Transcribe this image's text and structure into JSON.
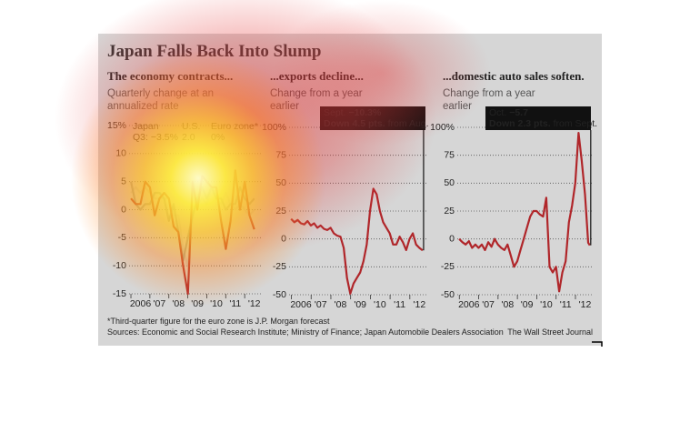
{
  "title": "Japan Falls Back Into Slump",
  "footnote": "*Third-quarter figure for the euro zone is J.P. Morgan forecast",
  "sources": "Sources: Economic and Social Research Institute; Ministry of Finance; Japan Automobile Dealers Association",
  "credit": "The Wall Street Journal",
  "chart_data": [
    {
      "type": "line",
      "title": "The economy contracts...",
      "subtitle": "Quarterly change at an annualized rate",
      "x": [
        2006.0,
        2006.25,
        2006.5,
        2006.75,
        2007.0,
        2007.25,
        2007.5,
        2007.75,
        2008.0,
        2008.25,
        2008.5,
        2008.75,
        2009.0,
        2009.25,
        2009.5,
        2009.75,
        2010.0,
        2010.25,
        2010.5,
        2010.75,
        2011.0,
        2011.25,
        2011.5,
        2011.75,
        2012.0,
        2012.25,
        2012.5
      ],
      "series": [
        {
          "name": "Euro zone*",
          "label": "0%",
          "color": "#c4c4c4",
          "values": [
            3,
            4,
            3,
            4,
            3,
            2,
            2,
            2,
            2,
            -1,
            -1,
            -7,
            -10,
            -1,
            1,
            2,
            1,
            4,
            2,
            1,
            3,
            1,
            0,
            1,
            0,
            -1,
            0
          ]
        },
        {
          "name": "U.S.",
          "label": "2.0",
          "color": "#9a9a9a",
          "values": [
            5,
            1,
            0,
            1,
            1,
            3,
            3,
            2,
            -2,
            1,
            -4,
            -9,
            -5,
            -1,
            2,
            4,
            2,
            4,
            2,
            2,
            0,
            1,
            1,
            4,
            2,
            1,
            2.0
          ]
        },
        {
          "name": "Japan",
          "label": "Q3: −3.5%",
          "color": "#b0262a",
          "values": [
            2,
            1,
            1,
            5,
            4,
            -1,
            2,
            3,
            2,
            -3,
            -4,
            -10,
            -15,
            5,
            0,
            6,
            5,
            4,
            4,
            -2,
            -7,
            -2,
            7,
            0,
            5,
            -1,
            -3.5
          ]
        }
      ],
      "xlim": [
        2005.9,
        2012.9
      ],
      "xticks": [
        {
          "value": 2006.5,
          "label": "2006"
        },
        {
          "value": 2007.5,
          "label": "'07"
        },
        {
          "value": 2008.5,
          "label": "'08"
        },
        {
          "value": 2009.5,
          "label": "'09"
        },
        {
          "value": 2010.5,
          "label": "'10"
        },
        {
          "value": 2011.5,
          "label": "'11"
        },
        {
          "value": 2012.5,
          "label": "'12"
        }
      ],
      "ylim": [
        -15,
        15
      ],
      "yticks": [
        -15,
        -10,
        -5,
        0,
        5,
        10,
        {
          "value": 15,
          "label": "15%"
        }
      ],
      "grid": true
    },
    {
      "type": "line",
      "title": "...exports decline...",
      "subtitle": "Change from a year earlier",
      "annotation": {
        "label": "Sept.",
        "value": "−10.3%",
        "change": "Down 4.5 pts.",
        "from": "from Aug."
      },
      "x": [
        2006.0,
        2006.167,
        2006.333,
        2006.5,
        2006.667,
        2006.833,
        2007.0,
        2007.167,
        2007.333,
        2007.5,
        2007.667,
        2007.833,
        2008.0,
        2008.167,
        2008.333,
        2008.5,
        2008.667,
        2008.833,
        2009.0,
        2009.167,
        2009.333,
        2009.5,
        2009.667,
        2009.833,
        2010.0,
        2010.167,
        2010.333,
        2010.5,
        2010.667,
        2010.833,
        2011.0,
        2011.167,
        2011.333,
        2011.5,
        2011.667,
        2011.833,
        2012.0,
        2012.167,
        2012.333,
        2012.5,
        2012.667
      ],
      "series": [
        {
          "name": "Exports",
          "color": "#b0262a",
          "values": [
            18,
            15,
            17,
            14,
            13,
            16,
            12,
            14,
            10,
            12,
            9,
            8,
            10,
            5,
            3,
            2,
            -8,
            -35,
            -49,
            -40,
            -35,
            -30,
            -20,
            -5,
            25,
            45,
            40,
            25,
            15,
            10,
            5,
            -5,
            -5,
            2,
            -3,
            -10,
            0,
            5,
            -5,
            -8,
            -10.3
          ]
        }
      ],
      "xlim": [
        2005.9,
        2012.9
      ],
      "xticks": [
        {
          "value": 2006.5,
          "label": "2006"
        },
        {
          "value": 2007.5,
          "label": "'07"
        },
        {
          "value": 2008.5,
          "label": "'08"
        },
        {
          "value": 2009.5,
          "label": "'09"
        },
        {
          "value": 2010.5,
          "label": "'10"
        },
        {
          "value": 2011.5,
          "label": "'11"
        },
        {
          "value": 2012.5,
          "label": "'12"
        }
      ],
      "ylim": [
        -50,
        100
      ],
      "yticks": [
        -50,
        -25,
        0,
        25,
        50,
        75,
        {
          "value": 100,
          "label": "100%"
        }
      ],
      "grid": true
    },
    {
      "type": "line",
      "title": "...domestic auto sales soften.",
      "subtitle": "Change from a year earlier",
      "annotation": {
        "label": "Oct.",
        "value": "−5.7",
        "change": "Down 2.3 pts.",
        "from": "from Sept."
      },
      "x": [
        2006.0,
        2006.167,
        2006.333,
        2006.5,
        2006.667,
        2006.833,
        2007.0,
        2007.167,
        2007.333,
        2007.5,
        2007.667,
        2007.833,
        2008.0,
        2008.167,
        2008.333,
        2008.5,
        2008.667,
        2008.833,
        2009.0,
        2009.167,
        2009.333,
        2009.5,
        2009.667,
        2009.833,
        2010.0,
        2010.167,
        2010.333,
        2010.5,
        2010.667,
        2010.833,
        2011.0,
        2011.167,
        2011.333,
        2011.5,
        2011.667,
        2011.833,
        2012.0,
        2012.167,
        2012.333,
        2012.5,
        2012.667,
        2012.75
      ],
      "series": [
        {
          "name": "Auto sales",
          "color": "#b0262a",
          "values": [
            0,
            -3,
            -5,
            -2,
            -8,
            -5,
            -8,
            -5,
            -10,
            -3,
            -7,
            0,
            -5,
            -8,
            -10,
            -5,
            -15,
            -25,
            -20,
            -10,
            0,
            10,
            20,
            25,
            25,
            22,
            20,
            37,
            -25,
            -30,
            -25,
            -47,
            -30,
            -20,
            15,
            30,
            50,
            95,
            70,
            40,
            -3.4,
            -5.7
          ]
        }
      ],
      "xlim": [
        2005.9,
        2012.9
      ],
      "xticks": [
        {
          "value": 2006.5,
          "label": "2006"
        },
        {
          "value": 2007.5,
          "label": "'07"
        },
        {
          "value": 2008.5,
          "label": "'08"
        },
        {
          "value": 2009.5,
          "label": "'09"
        },
        {
          "value": 2010.5,
          "label": "'10"
        },
        {
          "value": 2011.5,
          "label": "'11"
        },
        {
          "value": 2012.5,
          "label": "'12"
        }
      ],
      "ylim": [
        -50,
        100
      ],
      "yticks": [
        -50,
        -25,
        0,
        25,
        50,
        75,
        {
          "value": 100,
          "label": "100%"
        }
      ],
      "grid": true
    }
  ]
}
